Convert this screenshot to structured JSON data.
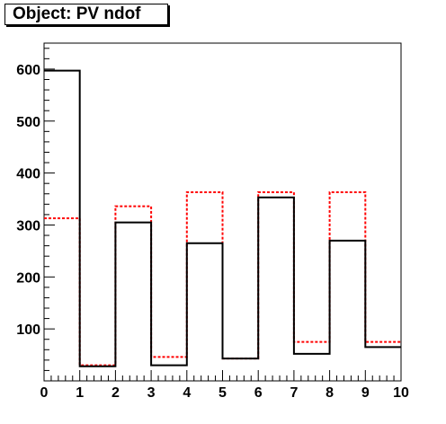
{
  "title": "Object: PV ndof",
  "chart_data": {
    "type": "step-histogram",
    "title": "Object: PV ndof",
    "xlabel": "",
    "ylabel": "",
    "xlim": [
      0,
      10
    ],
    "ylim": [
      0,
      650
    ],
    "x_ticks": [
      0,
      1,
      2,
      3,
      4,
      5,
      6,
      7,
      8,
      9,
      10
    ],
    "y_ticks": [
      100,
      200,
      300,
      400,
      500,
      600
    ],
    "bin_edges": [
      0,
      1,
      2,
      3,
      4,
      5,
      6,
      7,
      8,
      9,
      10
    ],
    "series": [
      {
        "values": [
          597,
          28,
          305,
          30,
          265,
          43,
          353,
          52,
          270,
          65
        ],
        "color": "#000000",
        "style": "solid"
      },
      {
        "values": [
          313,
          30,
          336,
          46,
          363,
          43,
          363,
          75,
          363,
          75
        ],
        "color": "#ff0000",
        "style": "dashed"
      }
    ]
  }
}
